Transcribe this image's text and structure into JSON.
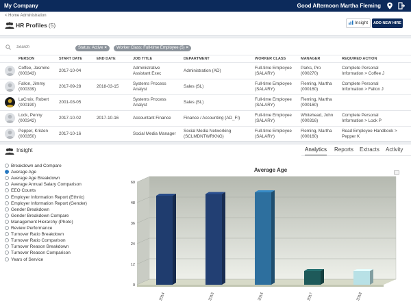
{
  "topbar": {
    "brand": "My Company",
    "greeting": "Good Afternoon Martha Fleming"
  },
  "breadcrumb": "< Home Administration",
  "page": {
    "title": "HR Profiles",
    "count": "(5)"
  },
  "buttons": {
    "insight": "Insight",
    "add_new_hire": "ADD NEW HIRE"
  },
  "search": {
    "placeholder": "Search"
  },
  "filters": [
    "Status: Active",
    "Worker Class: Full-time Employee (5)"
  ],
  "columns": [
    "PERSON",
    "START DATE",
    "END DATE",
    "JOB TITLE",
    "DEPARTMENT",
    "WORKER CLASS",
    "MANAGER",
    "REQUIRED ACTION"
  ],
  "rows": [
    {
      "name": "Coffee, Jasmine",
      "id": "(000343)",
      "start": "2017-10-04",
      "end": "",
      "job1": "Administrative",
      "job2": "Assistant Exec",
      "dept1": "Administration (AD)",
      "dept2": "",
      "wc1": "Full-time Employee",
      "wc2": "(SALARY)",
      "mgr1": "Parks, Pro",
      "mgr2": "(000270)",
      "act1": "Complete Personal",
      "act2": "Information > Coffee J"
    },
    {
      "name": "Fallon, Jimmy",
      "id": "(000339)",
      "start": "2017-09-28",
      "end": "2018-03-15",
      "job1": "Systems Process",
      "job2": "Analyst",
      "dept1": "Sales (SL)",
      "dept2": "",
      "wc1": "Full-time Employee",
      "wc2": "(SALARY)",
      "mgr1": "Fleming, Martha",
      "mgr2": "(000160)",
      "act1": "Complete Personal",
      "act2": "Information > Fallon J"
    },
    {
      "name": "LaCroix, Robert",
      "id": "(000190)",
      "start": "2001-03-05",
      "end": "",
      "job1": "Systems Process",
      "job2": "Analyst",
      "dept1": "Sales (SL)",
      "dept2": "",
      "wc1": "Full-time Employee",
      "wc2": "(SALARY)",
      "mgr1": "Fleming, Martha",
      "mgr2": "(000160)",
      "act1": "",
      "act2": ""
    },
    {
      "name": "Lock, Penny",
      "id": "(000342)",
      "start": "2017-10-02",
      "end": "2017-10-16",
      "job1": "Accountant Finance",
      "job2": "",
      "dept1": "Finance / Accounting (AD_FI)",
      "dept2": "",
      "wc1": "Full-time Employee",
      "wc2": "(SALARY)",
      "mgr1": "Whitehead, John",
      "mgr2": "(000316)",
      "act1": "Complete Personal",
      "act2": "Information > Lock P"
    },
    {
      "name": "Pepper, Kristen",
      "id": "(000350)",
      "start": "2017-10-16",
      "end": "",
      "job1": "Social Media Manager",
      "job2": "",
      "dept1": "Social Media Networking",
      "dept2": "(SCLMDNTWRKNG)",
      "wc1": "Full-time Employee",
      "wc2": "(SALARY)",
      "mgr1": "Fleming, Martha",
      "mgr2": "(000160)",
      "act1": "Read Employee Handbook >",
      "act2": "Pepper K"
    }
  ],
  "insight": {
    "title": "Insight",
    "tabs": [
      "Analytics",
      "Reports",
      "Extracts",
      "Activity"
    ],
    "options": [
      "Breakdown and Compare",
      "Average Age",
      "Average Age Breakdown",
      "Average Annual Salary Comparison",
      "EEO Counts",
      "Employer Information Report (Ethnic)",
      "Employer Information Report (Gender)",
      "Gender Breakdown",
      "Gender Breakdown Compare",
      "Management Hierarchy (Photo)",
      "Review Performance",
      "Turnover Ratio Breakdown",
      "Turnover Ratio Comparison",
      "Turnover Reason Breakdown",
      "Turnover Reason Comparison",
      "Years of Service"
    ],
    "selected": "Average Age"
  },
  "colors": {
    "brand": "#0c2a5b"
  },
  "chart_data": {
    "type": "bar",
    "title": "Average Age",
    "categories": [
      "2014",
      "2015",
      "2016",
      "2017",
      "2018"
    ],
    "values": [
      52,
      53,
      54,
      8,
      8
    ],
    "colors": [
      "#1f3c6e",
      "#223f73",
      "#2d6f9e",
      "#1e5a5a",
      "#b8e1e6"
    ],
    "yticks": [
      0,
      12,
      24,
      36,
      48,
      60
    ],
    "ylim": [
      0,
      60
    ],
    "grid": true
  }
}
